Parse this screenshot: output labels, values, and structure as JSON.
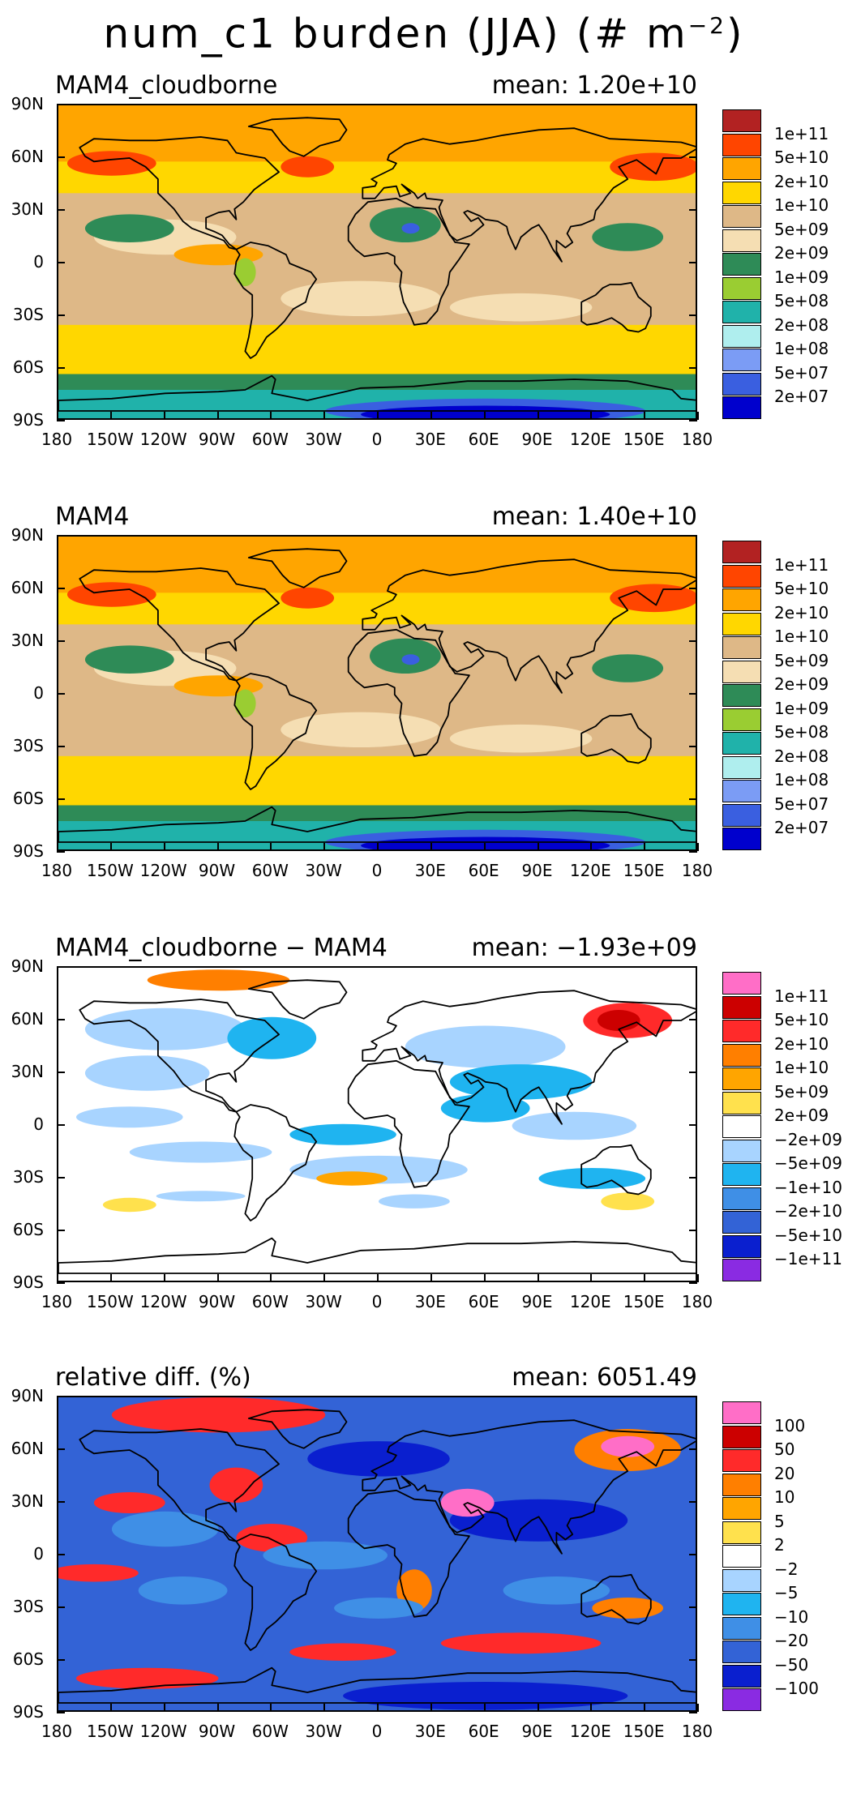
{
  "figure": {
    "title": "num_c1 burden (JJA) (# m",
    "title_exp": "−2",
    "title_close": ")"
  },
  "axes": {
    "lat_labels": [
      "90N",
      "60N",
      "30N",
      "0",
      "30S",
      "60S",
      "90S"
    ],
    "lon_labels": [
      "180",
      "150W",
      "120W",
      "90W",
      "60W",
      "30W",
      "0",
      "30E",
      "60E",
      "90E",
      "120E",
      "150E",
      "180"
    ]
  },
  "panels": [
    {
      "title": "MAM4_cloudborne",
      "mean": "mean: 1.20e+10",
      "scale": "abs",
      "levels": [
        "1e+11",
        "5e+10",
        "2e+10",
        "1e+10",
        "5e+09",
        "2e+09",
        "1e+09",
        "5e+08",
        "2e+08",
        "1e+08",
        "5e+07",
        "2e+07"
      ],
      "colors": [
        "#b22222",
        "#ff4500",
        "#ffa500",
        "#ffd700",
        "#deb887",
        "#f5deb3",
        "#2e8b57",
        "#9acd32",
        "#20b2aa",
        "#afeeee",
        "#7b9cf5",
        "#3a5fe0",
        "#0000cd"
      ]
    },
    {
      "title": "MAM4",
      "mean": "mean: 1.40e+10",
      "scale": "abs",
      "levels": [
        "1e+11",
        "5e+10",
        "2e+10",
        "1e+10",
        "5e+09",
        "2e+09",
        "1e+09",
        "5e+08",
        "2e+08",
        "1e+08",
        "5e+07",
        "2e+07"
      ],
      "colors": [
        "#b22222",
        "#ff4500",
        "#ffa500",
        "#ffd700",
        "#deb887",
        "#f5deb3",
        "#2e8b57",
        "#9acd32",
        "#20b2aa",
        "#afeeee",
        "#7b9cf5",
        "#3a5fe0",
        "#0000cd"
      ]
    },
    {
      "title": "MAM4_cloudborne − MAM4",
      "mean": "mean: −1.93e+09",
      "scale": "diff",
      "levels": [
        "1e+11",
        "5e+10",
        "2e+10",
        "1e+10",
        "5e+09",
        "2e+09",
        "−2e+09",
        "−5e+09",
        "−1e+10",
        "−2e+10",
        "−5e+10",
        "−1e+11"
      ],
      "colors": [
        "#ff6ec7",
        "#cc0000",
        "#ff2a2a",
        "#ff7f00",
        "#ffa500",
        "#ffe14d",
        "#ffffff",
        "#a8d4ff",
        "#1fb4f0",
        "#3f8fe6",
        "#3363d6",
        "#0a1fcf",
        "#8a2be2"
      ]
    },
    {
      "title": "relative diff. (%)",
      "mean": "mean: 6051.49",
      "scale": "rel",
      "levels": [
        "100",
        "50",
        "20",
        "10",
        "5",
        "2",
        "−2",
        "−5",
        "−10",
        "−20",
        "−50",
        "−100"
      ],
      "colors": [
        "#ff6ec7",
        "#cc0000",
        "#ff2a2a",
        "#ff7f00",
        "#ffa500",
        "#ffe14d",
        "#ffffff",
        "#a8d4ff",
        "#1fb4f0",
        "#3f8fe6",
        "#3363d6",
        "#0a1fcf",
        "#8a2be2"
      ]
    }
  ]
}
